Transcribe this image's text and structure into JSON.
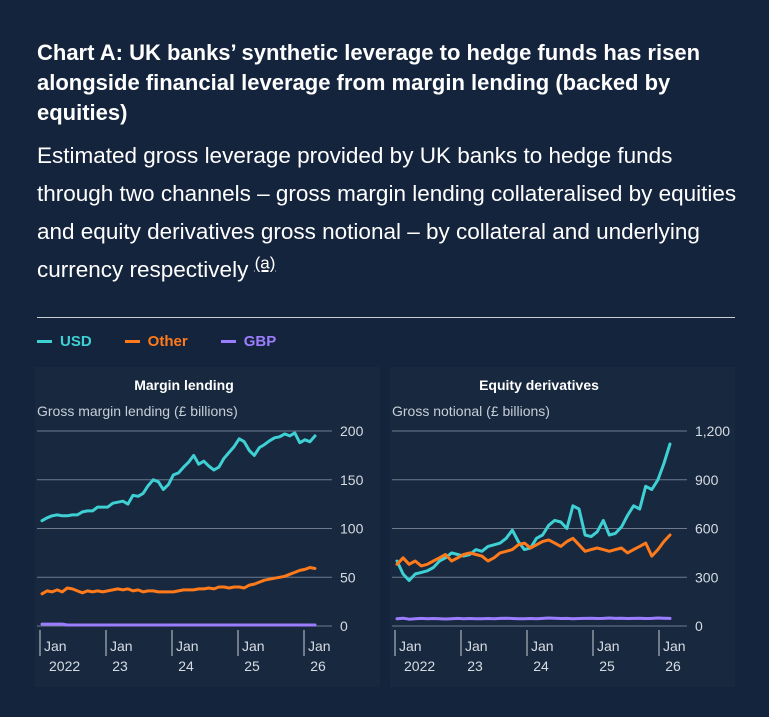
{
  "title": "Chart A: UK banks’ synthetic leverage to hedge funds has risen alongside financial leverage from margin lending (backed by equities)",
  "subtitle": "Estimated gross leverage provided by UK banks to hedge funds through two channels – gross margin lending collateralised by equities and equity derivatives gross notional – by collateral and underlying currency respectively",
  "footnote_marker": "(a)",
  "colors": {
    "USD": "#3fd0d4",
    "Other": "#ff7a1a",
    "GBP": "#9d7dff",
    "background": "#15243d",
    "grid": "#6f7b8d"
  },
  "legend": [
    {
      "label": "USD",
      "color": "#3fd0d4"
    },
    {
      "label": "Other",
      "color": "#ff7a1a"
    },
    {
      "label": "GBP",
      "color": "#9d7dff"
    }
  ],
  "chart_data": [
    {
      "type": "line",
      "title": "Margin lending",
      "ylabel": "Gross margin lending (£ billions)",
      "ylim": [
        0,
        200
      ],
      "yticks": [
        "0",
        "50",
        "100",
        "150",
        "200"
      ],
      "xticks": [
        {
          "month": "Jan",
          "year": "2022"
        },
        {
          "month": "Jan",
          "year": "23"
        },
        {
          "month": "Jan",
          "year": "24"
        },
        {
          "month": "Jan",
          "year": "25"
        },
        {
          "month": "Jan",
          "year": "26"
        }
      ],
      "x_start": "2022-01",
      "x_end": "2026-01",
      "series": [
        {
          "name": "USD",
          "values": [
            108,
            111,
            113,
            114,
            113,
            113,
            114,
            114,
            117,
            118,
            118,
            122,
            122,
            122,
            126,
            127,
            128,
            125,
            134,
            133,
            136,
            144,
            150,
            148,
            140,
            145,
            155,
            157,
            163,
            168,
            175,
            166,
            169,
            164,
            160,
            163,
            172,
            178,
            184,
            192,
            189,
            180,
            175,
            183,
            186,
            190,
            193,
            194,
            197,
            195,
            198,
            188,
            191,
            189,
            195
          ]
        },
        {
          "name": "Other",
          "values": [
            33,
            36,
            35,
            37,
            35,
            39,
            38,
            36,
            34,
            36,
            35,
            36,
            35,
            36,
            37,
            38,
            37,
            38,
            36,
            37,
            35,
            36,
            36,
            35,
            35,
            35,
            35,
            36,
            37,
            37,
            37,
            38,
            38,
            39,
            38,
            40,
            40,
            39,
            40,
            40,
            39,
            42,
            43,
            45,
            47,
            48,
            49,
            50,
            51,
            53,
            55,
            57,
            58,
            60,
            59
          ]
        },
        {
          "name": "GBP",
          "values": [
            2,
            2,
            2,
            2,
            2,
            1,
            1,
            1,
            1,
            1,
            1,
            1,
            1,
            1,
            1,
            1,
            1,
            1,
            1,
            1,
            1,
            1,
            1,
            1,
            1,
            1,
            1,
            1,
            1,
            1,
            1,
            1,
            1,
            1,
            1,
            1,
            1,
            1,
            1,
            1,
            1,
            1,
            1,
            1,
            1,
            1,
            1,
            1,
            1,
            1,
            1,
            1,
            1,
            1,
            1
          ]
        }
      ]
    },
    {
      "type": "line",
      "title": "Equity derivatives",
      "ylabel": "Gross notional (£ billions)",
      "ylim": [
        0,
        1200
      ],
      "yticks": [
        "0",
        "300",
        "600",
        "900",
        "1,200"
      ],
      "xticks": [
        {
          "month": "Jan",
          "year": "2022"
        },
        {
          "month": "Jan",
          "year": "23"
        },
        {
          "month": "Jan",
          "year": "24"
        },
        {
          "month": "Jan",
          "year": "25"
        },
        {
          "month": "Jan",
          "year": "26"
        }
      ],
      "x_start": "2022-01",
      "x_end": "2026-01",
      "series": [
        {
          "name": "USD",
          "values": [
            400,
            320,
            280,
            320,
            330,
            340,
            360,
            400,
            420,
            450,
            440,
            430,
            440,
            470,
            460,
            490,
            500,
            510,
            540,
            590,
            520,
            470,
            480,
            540,
            560,
            620,
            650,
            640,
            600,
            740,
            720,
            560,
            550,
            580,
            650,
            560,
            570,
            610,
            680,
            740,
            720,
            860,
            840,
            900,
            1000,
            1120
          ]
        },
        {
          "name": "Other",
          "values": [
            380,
            420,
            380,
            400,
            370,
            380,
            400,
            420,
            440,
            400,
            420,
            440,
            450,
            440,
            430,
            400,
            420,
            450,
            460,
            470,
            500,
            510,
            480,
            500,
            520,
            530,
            510,
            490,
            520,
            540,
            500,
            460,
            470,
            480,
            470,
            460,
            470,
            480,
            450,
            470,
            490,
            510,
            430,
            470,
            520,
            560
          ]
        },
        {
          "name": "GBP",
          "values": [
            45,
            48,
            42,
            44,
            47,
            45,
            46,
            44,
            43,
            45,
            47,
            44,
            46,
            45,
            44,
            46,
            45,
            47,
            48,
            46,
            45,
            44,
            46,
            45,
            47,
            49,
            48,
            46,
            47,
            45,
            46,
            47,
            48,
            46,
            47,
            49,
            47,
            48,
            46,
            47,
            48,
            46,
            47,
            49,
            48,
            47
          ]
        }
      ]
    }
  ]
}
